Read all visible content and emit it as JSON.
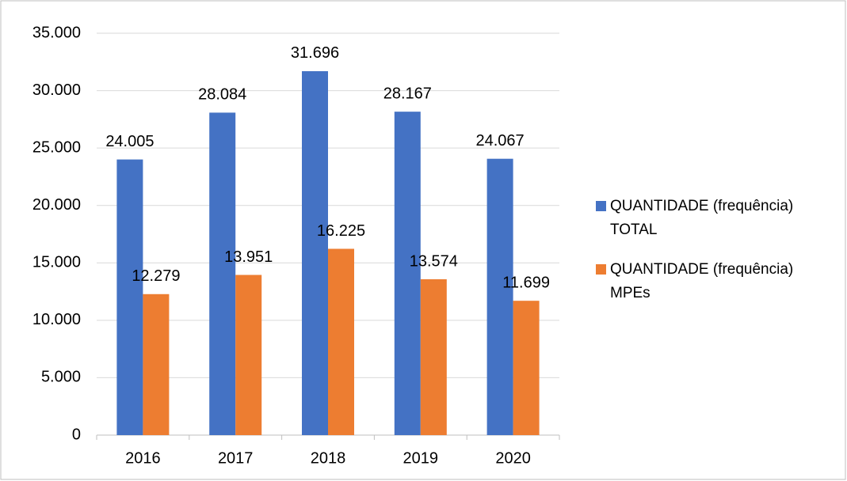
{
  "chart_data": {
    "type": "bar",
    "categories": [
      "2016",
      "2017",
      "2018",
      "2019",
      "2020"
    ],
    "series": [
      {
        "name": "QUANTIDADE (frequência) TOTAL",
        "color": "#4472c4",
        "values": [
          24005,
          28084,
          31696,
          28167,
          24067
        ],
        "value_labels": [
          "24.005",
          "28.084",
          "31.696",
          "28.167",
          "24.067"
        ]
      },
      {
        "name": "QUANTIDADE (frequência) MPEs",
        "color": "#ed7d31",
        "values": [
          12279,
          13951,
          16225,
          13574,
          11699
        ],
        "value_labels": [
          "12.279",
          "13.951",
          "16.225",
          "13.574",
          "11.699"
        ]
      }
    ],
    "ylim": [
      0,
      35000
    ],
    "yticks": [
      0,
      {
        "value": 5000,
        "label": "5.000"
      },
      {
        "value": 10000,
        "label": "10.000"
      },
      {
        "value": 15000,
        "label": "15.000"
      },
      {
        "value": 20000,
        "label": "20.000"
      },
      {
        "value": 25000,
        "label": "25.000"
      },
      {
        "value": 30000,
        "label": "30.000"
      },
      {
        "value": 35000,
        "label": "35.000"
      }
    ],
    "grid": true,
    "legend": "right"
  }
}
